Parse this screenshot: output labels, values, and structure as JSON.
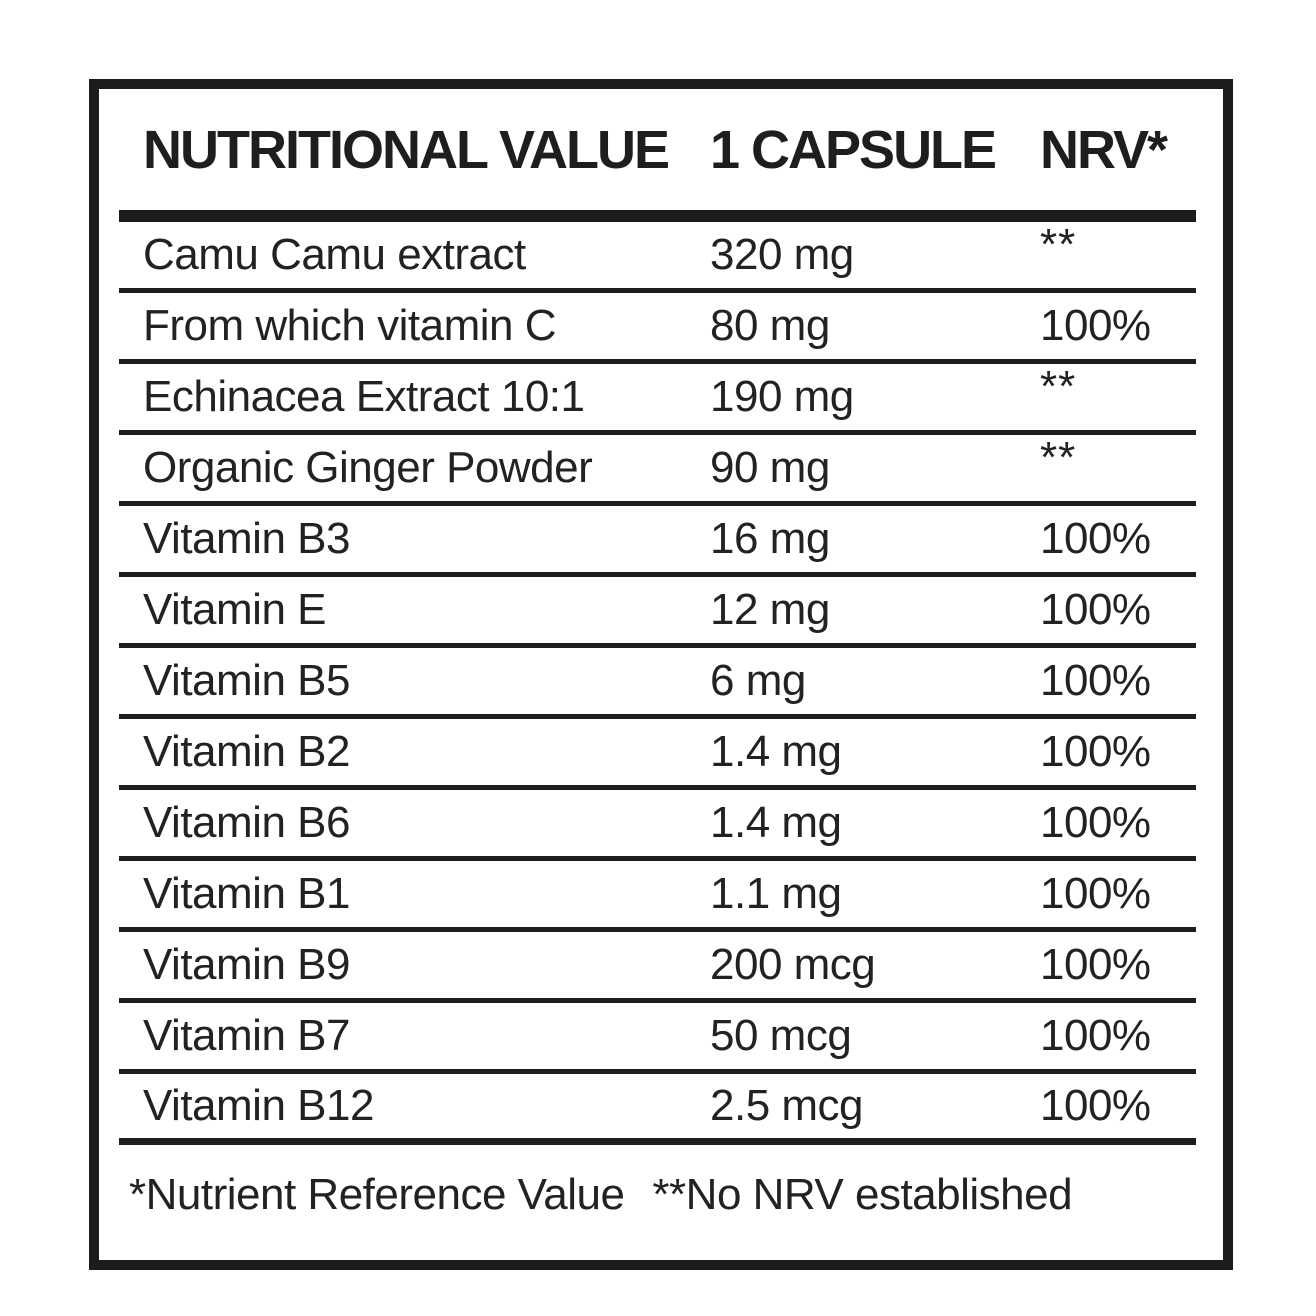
{
  "header": {
    "col_nutritional": "NUTRITIONAL VALUE",
    "col_capsule": "1 CAPSULE",
    "col_nrv": "NRV*"
  },
  "rows": [
    {
      "name": "Camu Camu extract",
      "amount": "320 mg",
      "nrv": "**"
    },
    {
      "name": "From which vitamin C",
      "amount": "80 mg",
      "nrv": "100%"
    },
    {
      "name": "Echinacea Extract 10:1",
      "amount": "190 mg",
      "nrv": "**"
    },
    {
      "name": "Organic Ginger Powder",
      "amount": "90 mg",
      "nrv": "**"
    },
    {
      "name": "Vitamin B3",
      "amount": "16 mg",
      "nrv": "100%"
    },
    {
      "name": "Vitamin E",
      "amount": "12 mg",
      "nrv": "100%"
    },
    {
      "name": "Vitamin B5",
      "amount": "6 mg",
      "nrv": "100%"
    },
    {
      "name": "Vitamin B2",
      "amount": "1.4 mg",
      "nrv": "100%"
    },
    {
      "name": "Vitamin B6",
      "amount": "1.4 mg",
      "nrv": "100%"
    },
    {
      "name": "Vitamin B1",
      "amount": "1.1 mg",
      "nrv": "100%"
    },
    {
      "name": "Vitamin B9",
      "amount": "200 mcg",
      "nrv": "100%"
    },
    {
      "name": "Vitamin B7",
      "amount": "50 mcg",
      "nrv": "100%"
    },
    {
      "name": "Vitamin B12",
      "amount": "2.5 mcg",
      "nrv": "100%"
    }
  ],
  "footer": {
    "note_nrv": "*Nutrient Reference Value",
    "note_no_nrv": "**No NRV established"
  },
  "colors": {
    "text": "#242122",
    "line": "#1c1c1c",
    "background": "#ffffff"
  }
}
